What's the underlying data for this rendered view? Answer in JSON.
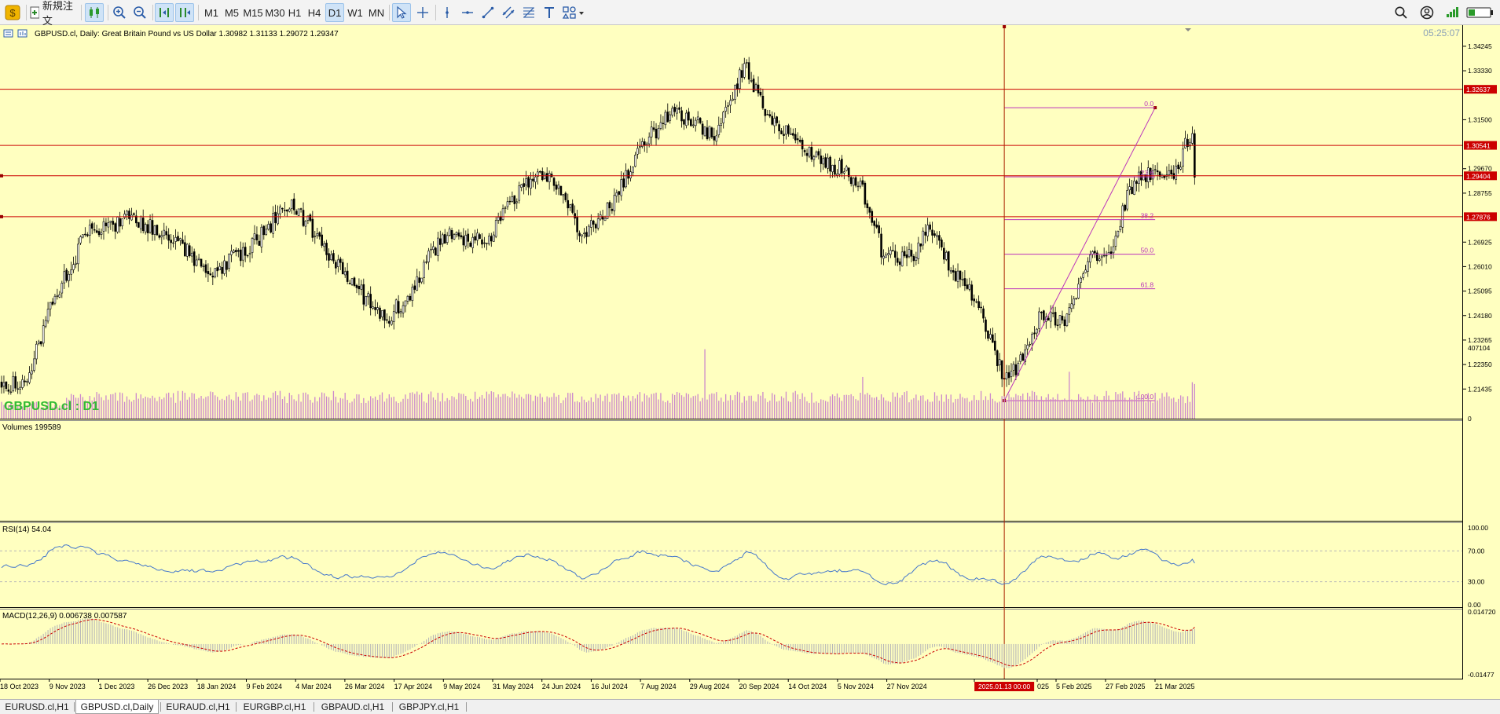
{
  "toolbar": {
    "new_order_label": "新規注文",
    "timeframes": [
      "M1",
      "M5",
      "M15",
      "M30",
      "H1",
      "H4",
      "D1",
      "W1",
      "MN"
    ],
    "active_timeframe": "D1"
  },
  "chart_header": {
    "symbol_info": "GBPUSD.cl, Daily:  Great Britain Pound vs US Dollar  1.30982 1.31133 1.29072 1.29347",
    "watermark": "GBPUSD.cl : D1",
    "server_time": "05:25:07"
  },
  "colors": {
    "background": "#ffffc0",
    "bull_candle": "#ffffff",
    "bear_candle": "#000000",
    "hline": "#cc0000",
    "fib": "#bb33bb",
    "volume": "#cc88cc",
    "rsi_line": "#4477cc",
    "macd_hist": "#b8b8b8",
    "macd_signal": "#cc0000"
  },
  "chart_data": [
    {
      "type": "candlestick",
      "title": "",
      "ylim": [
        1.2065,
        1.348
      ],
      "y_ticks": [
        "1.34245",
        "1.33330",
        "1.31500",
        "1.29670",
        "1.28755",
        "1.26925",
        "1.26010",
        "1.25095",
        "1.24180",
        "1.23265",
        "1.22350",
        "1.21435"
      ],
      "x_date_labels": [
        "18 Oct 2023",
        "9 Nov 2023",
        "1 Dec 2023",
        "26 Dec 2023",
        "18 Jan 2024",
        "9 Feb 2024",
        "4 Mar 2024",
        "26 Mar 2024",
        "17 Apr 2024",
        "9 May 2024",
        "31 May 2024",
        "24 Jun 2024",
        "16 Jul 2024",
        "7 Aug 2024",
        "29 Aug 2024",
        "20 Sep 2024",
        "14 Oct 2024",
        "5 Nov 2024",
        "27 Nov 2024",
        "19 D",
        "2025.01.13 00:00",
        "025",
        "5 Feb 2025",
        "27 Feb 2025",
        "21 Mar 2025"
      ],
      "cursor_date": "2025.01.13 00:00",
      "anchor_closes": [
        {
          "bar": 0,
          "close": 1.215
        },
        {
          "bar": 10,
          "close": 1.217
        },
        {
          "bar": 22,
          "close": 1.246
        },
        {
          "bar": 36,
          "close": 1.272
        },
        {
          "bar": 55,
          "close": 1.278
        },
        {
          "bar": 75,
          "close": 1.271
        },
        {
          "bar": 90,
          "close": 1.257
        },
        {
          "bar": 110,
          "close": 1.27
        },
        {
          "bar": 125,
          "close": 1.285
        },
        {
          "bar": 138,
          "close": 1.268
        },
        {
          "bar": 152,
          "close": 1.253
        },
        {
          "bar": 165,
          "close": 1.24
        },
        {
          "bar": 175,
          "close": 1.249
        },
        {
          "bar": 190,
          "close": 1.272
        },
        {
          "bar": 208,
          "close": 1.269
        },
        {
          "bar": 225,
          "close": 1.29
        },
        {
          "bar": 236,
          "close": 1.295
        },
        {
          "bar": 250,
          "close": 1.272
        },
        {
          "bar": 262,
          "close": 1.282
        },
        {
          "bar": 275,
          "close": 1.305
        },
        {
          "bar": 290,
          "close": 1.318
        },
        {
          "bar": 308,
          "close": 1.309
        },
        {
          "bar": 320,
          "close": 1.336
        },
        {
          "bar": 330,
          "close": 1.317
        },
        {
          "bar": 345,
          "close": 1.304
        },
        {
          "bar": 358,
          "close": 1.298
        },
        {
          "bar": 370,
          "close": 1.292
        },
        {
          "bar": 380,
          "close": 1.264
        },
        {
          "bar": 392,
          "close": 1.264
        },
        {
          "bar": 400,
          "close": 1.274
        },
        {
          "bar": 410,
          "close": 1.258
        },
        {
          "bar": 420,
          "close": 1.247
        },
        {
          "bar": 432,
          "close": 1.218
        },
        {
          "bar": 440,
          "close": 1.225
        },
        {
          "bar": 448,
          "close": 1.243
        },
        {
          "bar": 458,
          "close": 1.238
        },
        {
          "bar": 468,
          "close": 1.262
        },
        {
          "bar": 478,
          "close": 1.265
        },
        {
          "bar": 486,
          "close": 1.29
        },
        {
          "bar": 496,
          "close": 1.296
        },
        {
          "bar": 505,
          "close": 1.293
        },
        {
          "bar": 513,
          "close": 1.312
        },
        {
          "bar": 514,
          "close": 1.2935
        }
      ],
      "horizontal_lines": [
        {
          "price": 1.32637,
          "label": "1.32637"
        },
        {
          "price": 1.30541,
          "label": "1.30541"
        },
        {
          "price": 1.29404,
          "label": "1.29404"
        },
        {
          "price": 1.27876,
          "label": "1.27876"
        }
      ],
      "fibonacci": {
        "low": 1.21,
        "high": 1.3195,
        "levels": [
          {
            "ratio": 0.0,
            "label": "0.0"
          },
          {
            "ratio": 0.236,
            "label": "23.6"
          },
          {
            "ratio": 0.382,
            "label": "38.2"
          },
          {
            "ratio": 0.5,
            "label": "50.0"
          },
          {
            "ratio": 0.618,
            "label": "61.8"
          },
          {
            "ratio": 1.0,
            "label": "100.0"
          }
        ]
      }
    },
    {
      "type": "bar",
      "title": "Volumes 199589",
      "ylim": [
        0,
        407104
      ],
      "y_ticks": [
        "407104",
        "0"
      ]
    },
    {
      "type": "line",
      "title": "RSI(14) 54.04",
      "ylim": [
        0,
        100
      ],
      "y_ticks": [
        "100.00",
        "70.00",
        "30.00",
        "0.00"
      ],
      "levels": [
        70,
        30
      ]
    },
    {
      "type": "bar",
      "title": "MACD(12,26,9) 0.006738 0.007587",
      "ylim": [
        -0.01477,
        0.01472
      ],
      "y_ticks": [
        "0.014720",
        "-0.01477"
      ]
    }
  ],
  "tabs": [
    "EURUSD.cl,H1",
    "GBPUSD.cl,Daily",
    "EURAUD.cl,H1",
    "EURGBP.cl,H1",
    "GBPAUD.cl,H1",
    "GBPJPY.cl,H1"
  ],
  "active_tab": "GBPUSD.cl,Daily"
}
